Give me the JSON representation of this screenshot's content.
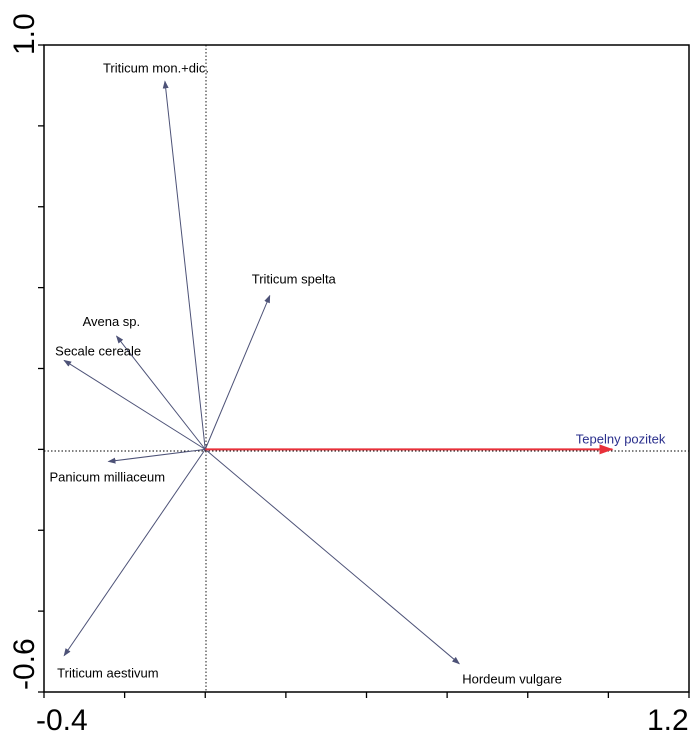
{
  "chart_data": {
    "type": "biplot",
    "xlim": [
      -0.4,
      1.2
    ],
    "ylim": [
      -0.6,
      1.0
    ],
    "x_tick_labels": [
      "-0.4",
      "1.2"
    ],
    "y_tick_labels": [
      "-0.6",
      "1.0"
    ],
    "species": [
      {
        "name": "Triticum mon.+dic.",
        "x": -0.1,
        "y": 0.91
      },
      {
        "name": "Triticum spelta",
        "x": 0.16,
        "y": 0.38
      },
      {
        "name": "Avena sp.",
        "x": -0.22,
        "y": 0.28
      },
      {
        "name": "Secale cereale",
        "x": -0.35,
        "y": 0.22
      },
      {
        "name": "Panicum milliaceum",
        "x": -0.24,
        "y": -0.03
      },
      {
        "name": "Triticum aestivum",
        "x": -0.35,
        "y": -0.51
      },
      {
        "name": "Hordeum vulgare",
        "x": 0.63,
        "y": -0.53
      }
    ],
    "environmental": [
      {
        "name": "Tepelny pozitek",
        "x": 1.01,
        "y": 0.0,
        "color": "#e8303a",
        "label_color": "#2a2f8c"
      }
    ],
    "arrow_color": "#4d5277",
    "reference_lines": {
      "x": 0,
      "y": 0,
      "style": "dotted"
    },
    "grid": false
  }
}
